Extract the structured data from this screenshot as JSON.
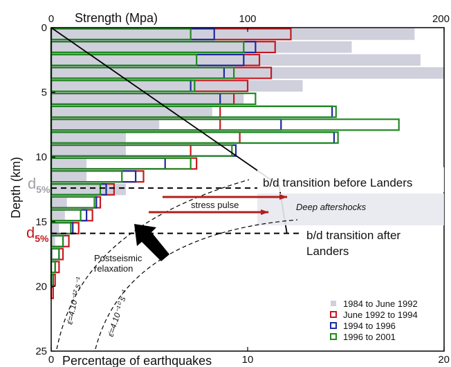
{
  "chart_data": {
    "type": "bar",
    "orientation": "horizontal",
    "y_axis": {
      "label": "Depth (km)",
      "range": [
        0,
        25
      ],
      "ticks": [
        "0",
        "5",
        "10",
        "15",
        "20",
        "25"
      ],
      "inverted": true
    },
    "x_axis_top": {
      "label": "Strength (Mpa)",
      "range": [
        0,
        200
      ],
      "ticks": [
        "0",
        "100",
        "200"
      ]
    },
    "x_axis_bottom": {
      "label": "Percentage of earthquakes",
      "range": [
        0,
        20
      ],
      "ticks": [
        "0",
        "10",
        "20"
      ]
    },
    "bin_size_km": 1,
    "series": [
      {
        "name": "1984 to June 1992",
        "color": "#d0d0dc",
        "style": "filled",
        "values": [
          18.5,
          15.3,
          18.8,
          20.0,
          12.8,
          9.8,
          8.2,
          5.5,
          3.8,
          3.8,
          1.8,
          1.8,
          3.8,
          0.8,
          0.7,
          0.4,
          0.2,
          0.1,
          0,
          0,
          0,
          0,
          0,
          0,
          0
        ]
      },
      {
        "name": "June 1992 to 1994",
        "color": "#c8181e",
        "style": "outline",
        "values": [
          12.2,
          11.4,
          10.6,
          11.2,
          10.0,
          9.3,
          8.6,
          8.6,
          9.6,
          7.1,
          7.4,
          4.7,
          3.2,
          2.5,
          2.1,
          1.4,
          0.9,
          0.6,
          0.4,
          0.2,
          0.1,
          0,
          0,
          0,
          0
        ]
      },
      {
        "name": "1994 to 1996",
        "color": "#1c2aa0",
        "style": "outline",
        "values": [
          8.3,
          10.4,
          9.8,
          8.8,
          7.1,
          8.6,
          14.3,
          11.7,
          14.4,
          9.4,
          5.8,
          4.3,
          2.8,
          2.3,
          1.8,
          1.1,
          0.6,
          0.4,
          0.2,
          0.1,
          0,
          0,
          0,
          0,
          0
        ]
      },
      {
        "name": "1996 to 2001",
        "color": "#1f8a1f",
        "style": "outline",
        "values": [
          7.1,
          9.8,
          7.4,
          9.3,
          7.3,
          10.4,
          14.5,
          17.7,
          14.6,
          9.2,
          7.1,
          3.6,
          2.5,
          2.2,
          1.5,
          1.0,
          0.6,
          0.4,
          0.2,
          0.1,
          0,
          0,
          0,
          0,
          0
        ]
      }
    ],
    "strength_profile": {
      "points": [
        [
          0,
          0
        ],
        [
          116,
          12.2
        ],
        [
          120,
          15.9
        ]
      ]
    },
    "annotations": {
      "d5_before": "d",
      "d5_sub": "5%",
      "d5_after": "d",
      "bd_before": "b/d transition before Landers",
      "bd_after_line1": "b/d transition after",
      "bd_after_line2": "Landers",
      "stress_pulse": "stress pulse",
      "deep_aftershocks": "Deep aftershocks",
      "postseismic_line1": "Postseismic",
      "postseismic_line2": "relaxation",
      "rate1": "ε̇=4.10⁻¹² s⁻¹",
      "rate2": "ε̇=4.10⁻¹⁰ s⁻¹"
    },
    "transition_depths_km": {
      "before": 12.4,
      "after": 15.9
    },
    "legend": {
      "position": "bottom-right"
    },
    "colors": {
      "d5_before": "#a0a0a8",
      "d5_after": "#c8181e",
      "arrow": "#b0201c",
      "profile": "#000000"
    }
  }
}
